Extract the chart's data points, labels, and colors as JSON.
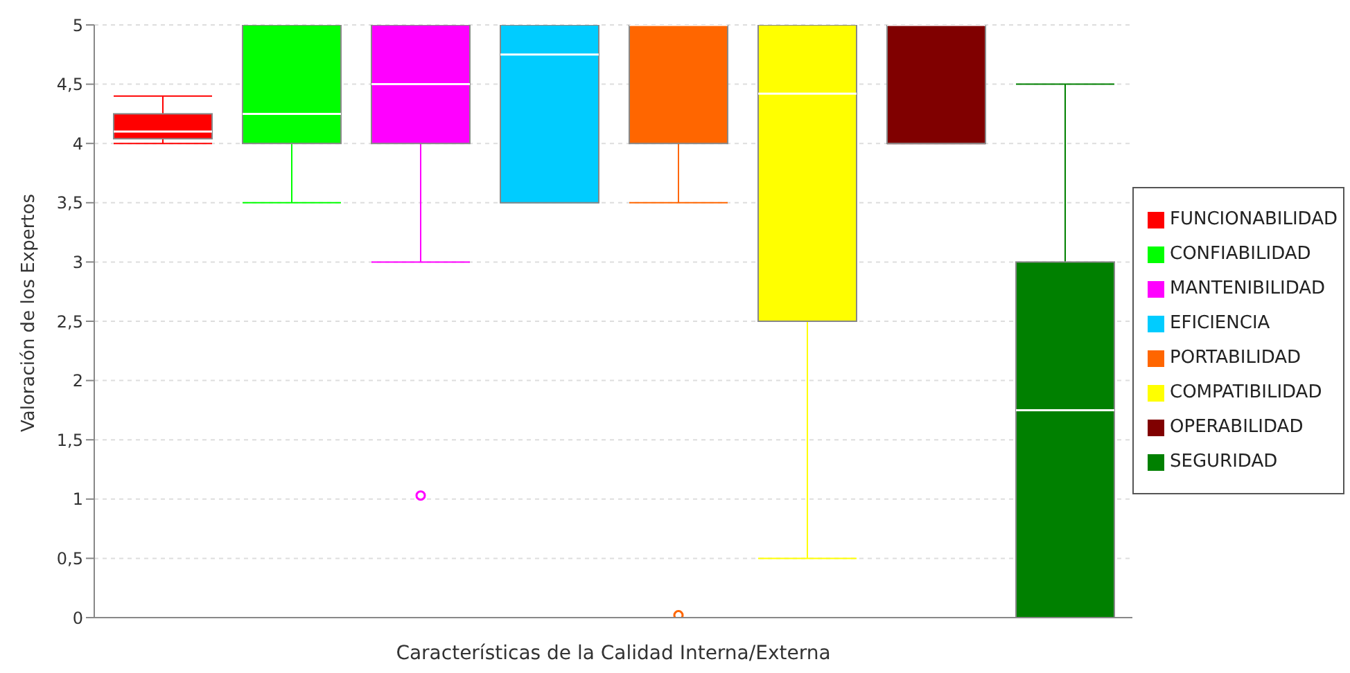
{
  "chart_data": {
    "type": "box",
    "xlabel": "Características de la Calidad Interna/Externa",
    "ylabel": "Valoración de los Expertos",
    "categories": [
      null
    ],
    "ylim": [
      0,
      5
    ],
    "yticks": [
      0,
      {
        "value": 0.5,
        "label": "0,5"
      },
      1,
      {
        "value": 1.5,
        "label": "1,5"
      },
      2,
      {
        "value": 2.5,
        "label": "2,5"
      },
      3,
      {
        "value": 3.5,
        "label": "3,5"
      },
      4,
      {
        "value": 4.5,
        "label": "4,5"
      },
      5
    ],
    "grid": "y",
    "legend": "right",
    "tick_labels": "y",
    "series": [
      {
        "name": "FUNCIONABILIDAD",
        "color": "#ff0000",
        "boxes": [
          {
            "low": 4,
            "q1": 4.04,
            "median": 4.1,
            "q3": 4.25,
            "high": 4.4
          }
        ]
      },
      {
        "name": "CONFIABILIDAD",
        "color": "#00ff00",
        "boxes": [
          {
            "low": 3.5,
            "q1": 4,
            "median": 4.25,
            "q3": 5,
            "high": 5
          }
        ]
      },
      {
        "name": "MANTENIBILIDAD",
        "color": "#ff00ff",
        "boxes": [
          {
            "low": 3,
            "q1": 4,
            "median": 4.5,
            "q3": 5,
            "high": 5,
            "outliers": [
              1.03
            ]
          }
        ]
      },
      {
        "name": "EFICIENCIA",
        "color": "#00ccff",
        "boxes": [
          {
            "low": 3.5,
            "q1": 3.5,
            "median": 4.75,
            "q3": 5,
            "high": 5
          }
        ]
      },
      {
        "name": "PORTABILIDAD",
        "color": "#ff6600",
        "boxes": [
          {
            "low": 3.5,
            "q1": 4,
            "median": 5,
            "q3": 5,
            "high": 5,
            "outliers": [
              0.02
            ]
          }
        ]
      },
      {
        "name": "COMPATIBILIDAD",
        "color": "#ffff00",
        "boxes": [
          {
            "low": 0.5,
            "q1": 2.5,
            "median": 4.42,
            "q3": 5,
            "high": 5
          }
        ]
      },
      {
        "name": "OPERABILIDAD",
        "color": "#800000",
        "boxes": [
          {
            "low": 4,
            "q1": 4,
            "median": 5,
            "q3": 5,
            "high": 5
          }
        ]
      },
      {
        "name": "SEGURIDAD",
        "color": "#008000",
        "boxes": [
          {
            "low": 0,
            "q1": 0,
            "median": 1.75,
            "q3": 3,
            "high": 4.5
          }
        ]
      }
    ]
  }
}
